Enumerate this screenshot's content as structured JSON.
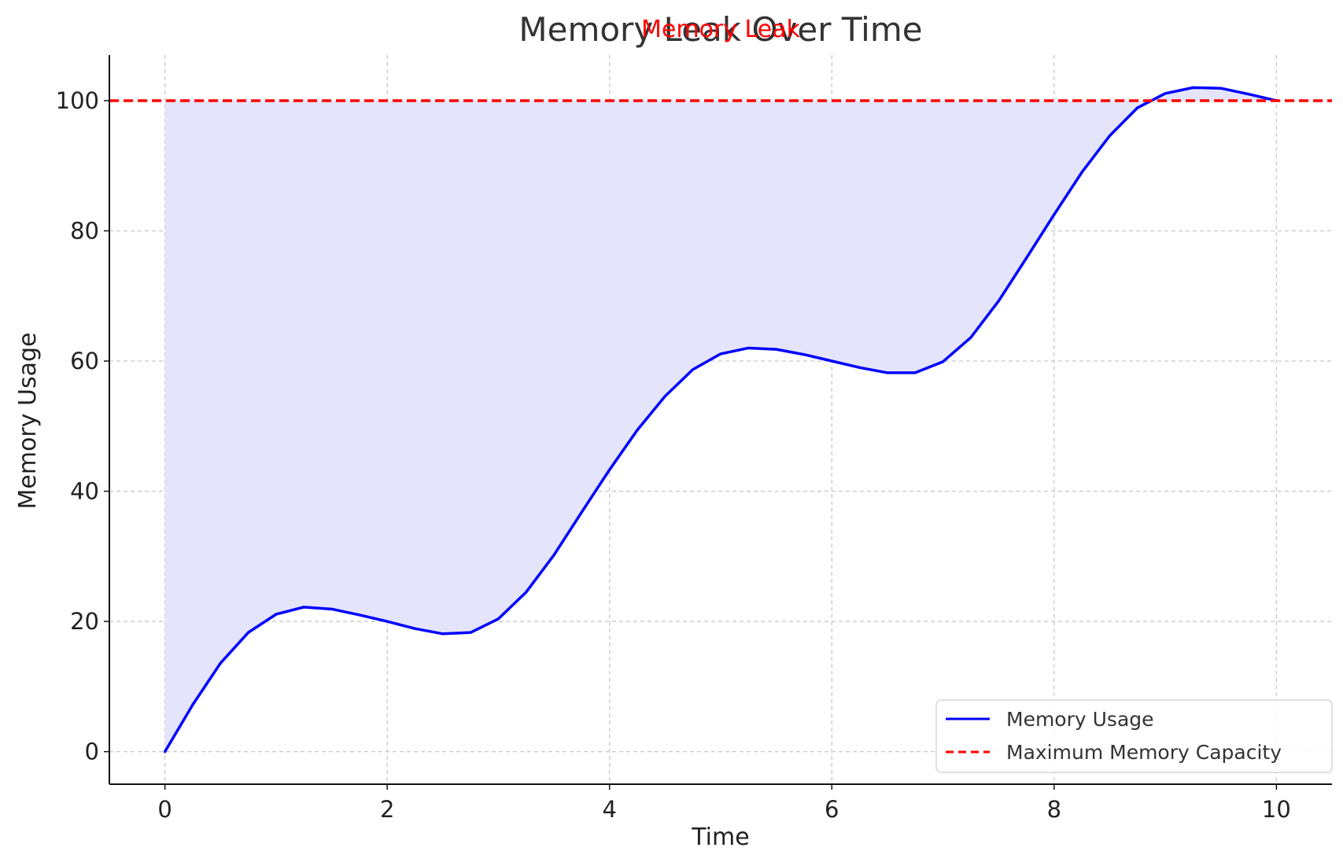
{
  "chart_data": {
    "type": "area",
    "title": "Memory Leak Over Time",
    "xlabel": "Time",
    "ylabel": "Memory Usage",
    "xlim": [
      -0.5,
      10.5
    ],
    "ylim": [
      -5,
      107
    ],
    "x_ticks": [
      0,
      2,
      4,
      6,
      8,
      10
    ],
    "y_ticks": [
      0,
      20,
      40,
      60,
      80,
      100
    ],
    "grid": true,
    "legend_position": "lower-right",
    "series": [
      {
        "name": "Memory Usage",
        "color": "#0000ff",
        "style": "solid",
        "fill_to": 100,
        "fill_color": "#e4e4fc",
        "x": [
          0,
          0.25,
          0.5,
          0.75,
          1,
          1.25,
          1.5,
          1.75,
          2,
          2.25,
          2.5,
          2.75,
          3,
          3.25,
          3.5,
          3.75,
          4,
          4.25,
          4.5,
          4.75,
          5,
          5.25,
          5.5,
          5.75,
          6,
          6.25,
          6.5,
          6.75,
          7,
          7.25,
          7.5,
          7.75,
          8,
          8.25,
          8.5,
          8.75,
          9,
          9.25,
          9.5,
          9.75,
          10
        ],
        "y": [
          0,
          7.2,
          13.6,
          18.3,
          21.1,
          22.2,
          21.9,
          21.0,
          20.0,
          18.9,
          18.1,
          18.3,
          20.4,
          24.5,
          30.2,
          36.8,
          43.3,
          49.4,
          54.6,
          58.7,
          61.1,
          62.0,
          61.8,
          61.0,
          60.0,
          59.0,
          58.2,
          58.2,
          59.9,
          63.6,
          69.2,
          75.8,
          82.5,
          89.0,
          94.6,
          98.9,
          101.1,
          102.0,
          101.9,
          101.0,
          100.0
        ]
      },
      {
        "name": "Maximum Memory Capacity",
        "color": "#ff0000",
        "style": "dashed",
        "y_constant": 100
      }
    ],
    "annotations": [
      {
        "text": "Memory Leak",
        "x": 5,
        "y": 111,
        "color": "#ff0000"
      }
    ]
  }
}
